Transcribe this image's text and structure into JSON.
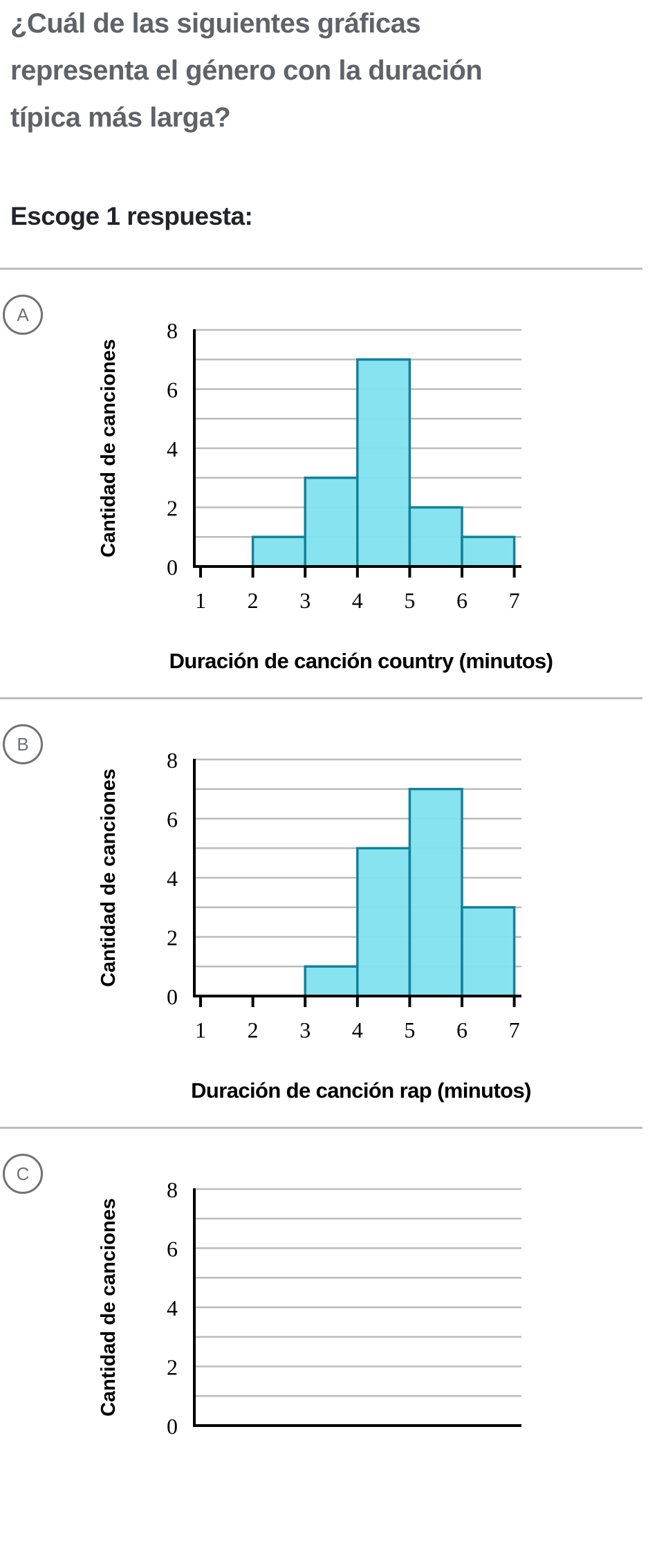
{
  "question": {
    "lines": [
      "¿Cuál de las siguientes gráficas",
      "representa el género con la duración",
      "típica más larga?"
    ],
    "prompt": "Escoge 1 respuesta:"
  },
  "colors": {
    "bar_fill": "#80e1ee",
    "bar_stroke": "#13829a",
    "grid": "#bbbbbb",
    "axis": "#000000"
  },
  "choices": [
    {
      "letter": "A",
      "xlabel": "Duración de canción country (minutos)"
    },
    {
      "letter": "B",
      "xlabel": "Duración de canción rap (minutos)"
    },
    {
      "letter": "C",
      "xlabel": ""
    }
  ],
  "chart_data": [
    {
      "type": "bar",
      "title": "",
      "xlabel": "Duración de canción country (minutos)",
      "ylabel": "Cantidad de canciones",
      "xlim": [
        1,
        7
      ],
      "ylim": [
        0,
        8
      ],
      "xticks": [
        "1",
        "2",
        "3",
        "4",
        "5",
        "6",
        "7"
      ],
      "yticks": [
        "0",
        "2",
        "4",
        "6",
        "8"
      ],
      "bins": [
        [
          2,
          3
        ],
        [
          3,
          4
        ],
        [
          4,
          5
        ],
        [
          5,
          6
        ],
        [
          6,
          7
        ]
      ],
      "values": [
        1,
        3,
        7,
        2,
        1
      ],
      "grid": true
    },
    {
      "type": "bar",
      "title": "",
      "xlabel": "Duración de canción rap (minutos)",
      "ylabel": "Cantidad de canciones",
      "xlim": [
        1,
        7
      ],
      "ylim": [
        0,
        8
      ],
      "xticks": [
        "1",
        "2",
        "3",
        "4",
        "5",
        "6",
        "7"
      ],
      "yticks": [
        "0",
        "2",
        "4",
        "6",
        "8"
      ],
      "bins": [
        [
          3,
          4
        ],
        [
          4,
          5
        ],
        [
          5,
          6
        ],
        [
          6,
          7
        ]
      ],
      "values": [
        1,
        5,
        7,
        3
      ],
      "grid": true
    },
    {
      "type": "bar",
      "title": "",
      "xlabel": "",
      "ylabel": "Cantidad de canciones",
      "xlim": [
        1,
        7
      ],
      "ylim": [
        0,
        8
      ],
      "xticks": [],
      "yticks": [
        "0",
        "2",
        "4",
        "6",
        "8"
      ],
      "bins": [],
      "values": [],
      "grid": true
    }
  ]
}
